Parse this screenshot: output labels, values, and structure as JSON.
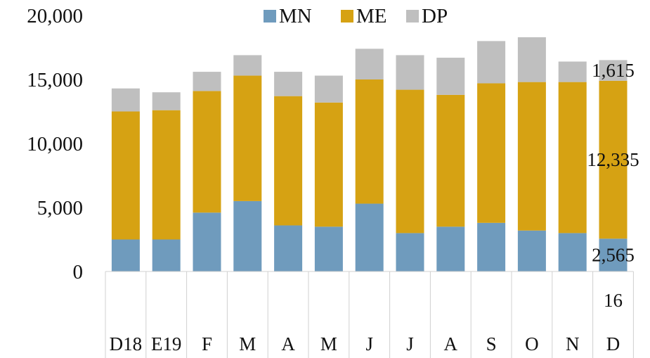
{
  "chart_data": {
    "type": "bar",
    "stacked": true,
    "categories": [
      "D18",
      "E19",
      "F",
      "M",
      "A",
      "M",
      "J",
      "J",
      "A",
      "S",
      "O",
      "N",
      "D"
    ],
    "year_label": "16",
    "series": [
      {
        "name": "MN",
        "color": "#6f9bbd",
        "values": [
          2500,
          2500,
          4600,
          5500,
          3600,
          3500,
          5300,
          3000,
          3500,
          3800,
          3200,
          3000,
          2565
        ]
      },
      {
        "name": "ME",
        "color": "#d6a213",
        "values": [
          10000,
          10100,
          9500,
          9800,
          10100,
          9700,
          9700,
          11200,
          10300,
          10900,
          11600,
          11800,
          12335
        ]
      },
      {
        "name": "DP",
        "color": "#bfbfbf",
        "values": [
          1800,
          1400,
          1500,
          1600,
          1900,
          2100,
          2400,
          2700,
          2900,
          3300,
          3500,
          1600,
          1615
        ]
      }
    ],
    "yticks": [
      "0",
      "5,000",
      "10,000",
      "15,000",
      "20,000"
    ],
    "ylim": [
      0,
      20000
    ],
    "data_labels": [
      "2,565",
      "12,335",
      "1,615"
    ],
    "legend": "top",
    "grid": false
  }
}
